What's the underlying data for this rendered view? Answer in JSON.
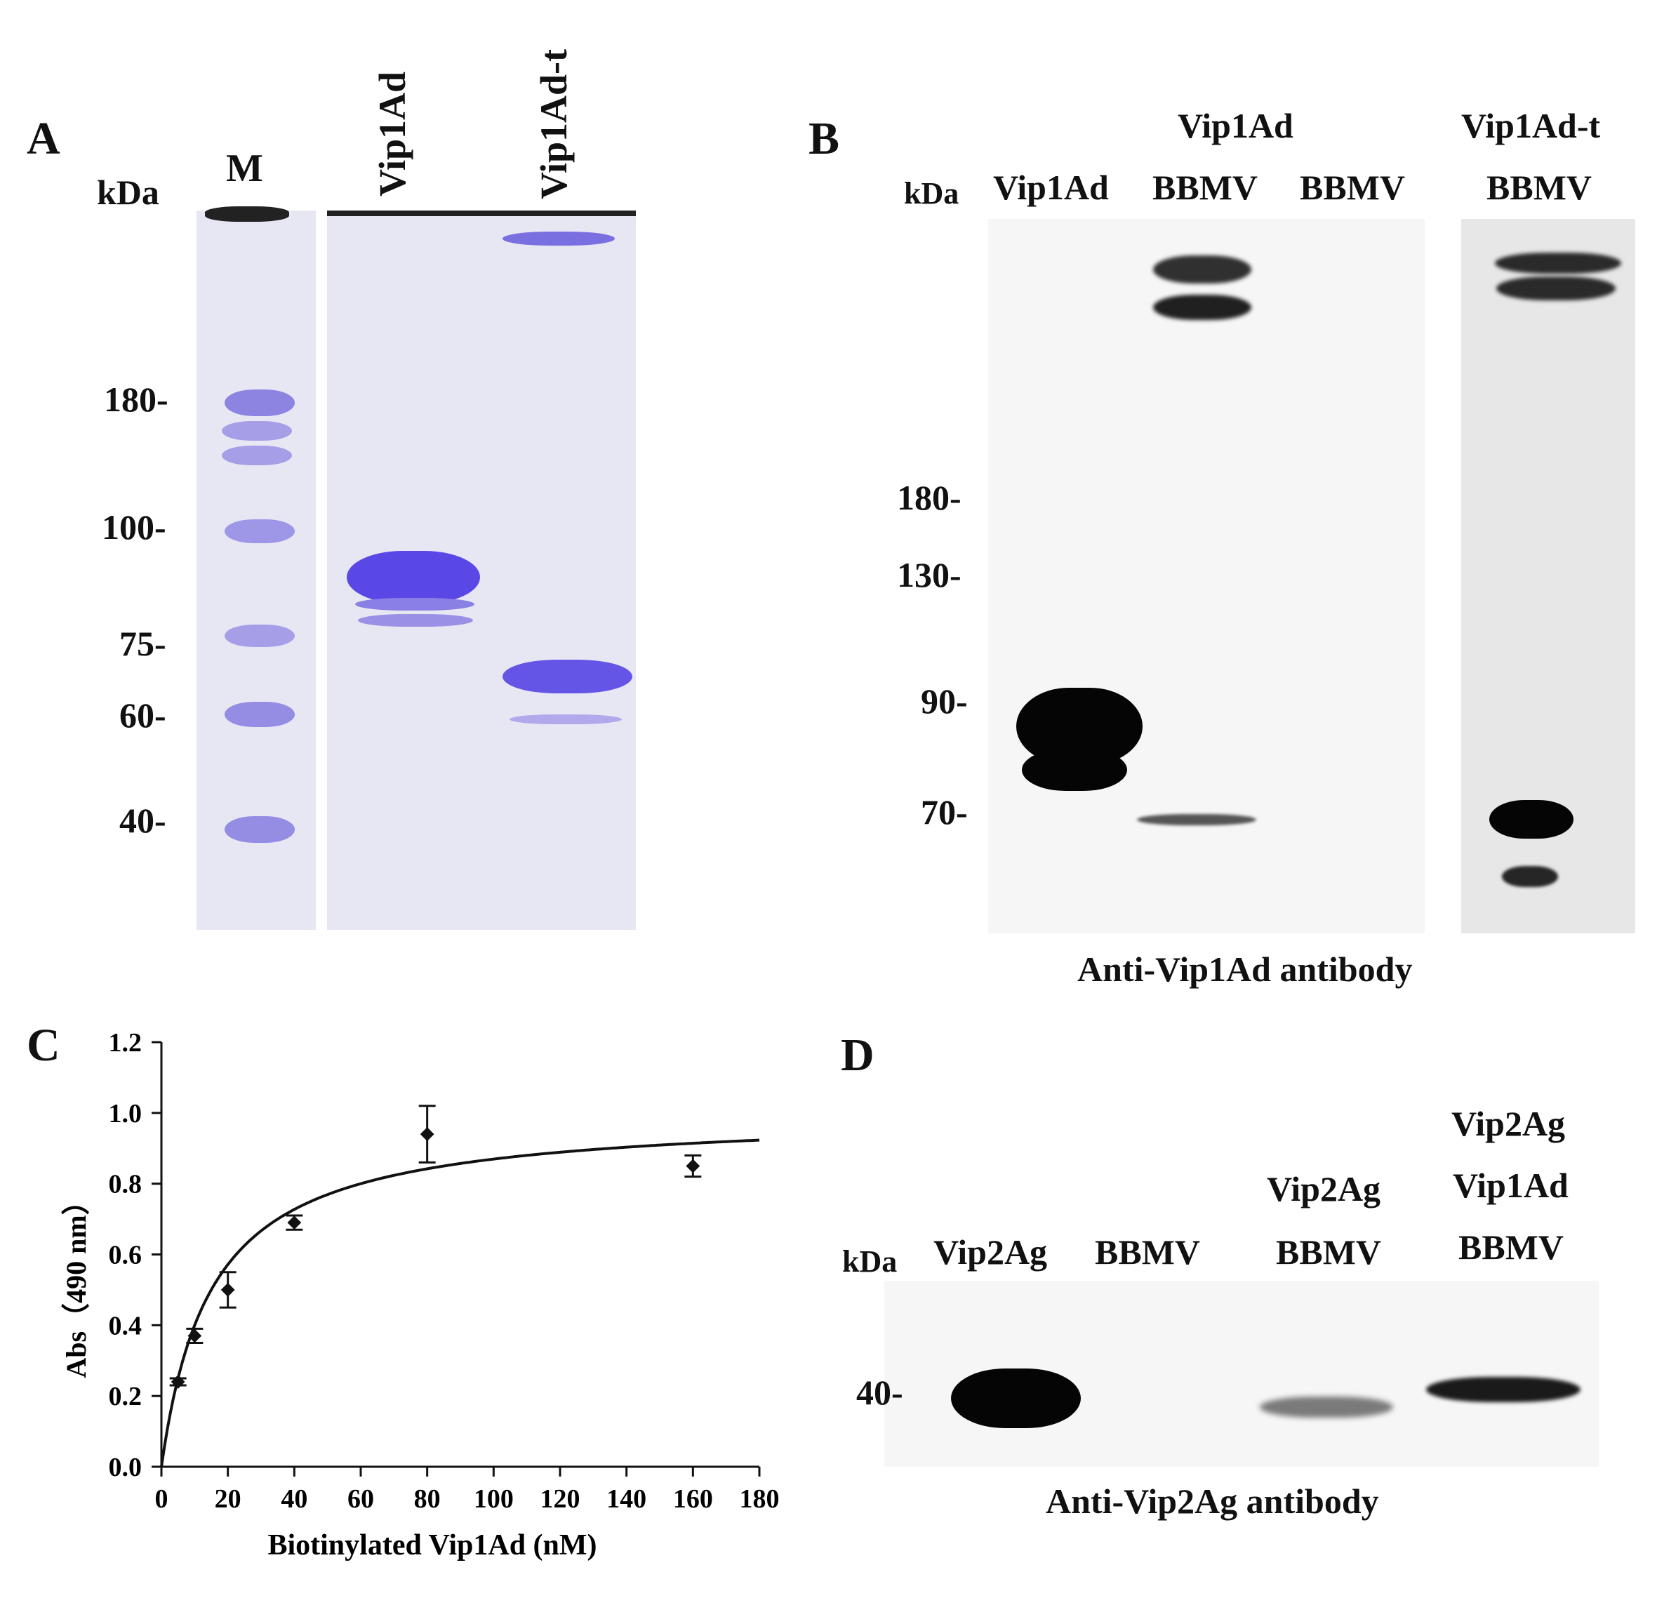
{
  "panelA": {
    "letter": "A",
    "unit": "kDa",
    "marker_lane": "M",
    "lanes": [
      "Vip1Ad",
      "Vip1Ad-t"
    ],
    "markers": [
      "180-",
      "100-",
      "75-",
      "60-",
      "40-"
    ]
  },
  "panelB": {
    "letter": "B",
    "unit": "kDa",
    "lane_headers": [
      {
        "top": "",
        "bottom": "Vip1Ad"
      },
      {
        "top": "Vip1Ad",
        "bottom": "BBMV"
      },
      {
        "top": "",
        "bottom": "BBMV"
      },
      {
        "top": "Vip1Ad-t",
        "bottom": "BBMV"
      }
    ],
    "markers": [
      "180-",
      "130-",
      "90-",
      "70-"
    ],
    "caption": "Anti-Vip1Ad antibody"
  },
  "panelC": {
    "letter": "C"
  },
  "panelD": {
    "letter": "D",
    "unit": "kDa",
    "lane_headers": [
      {
        "lines": [
          "Vip2Ag"
        ]
      },
      {
        "lines": [
          "BBMV"
        ]
      },
      {
        "lines": [
          "Vip2Ag",
          "BBMV"
        ]
      },
      {
        "lines": [
          "Vip2Ag",
          "Vip1Ad",
          "BBMV"
        ]
      }
    ],
    "marker": "40-",
    "caption": "Anti-Vip2Ag antibody"
  },
  "chart_data": {
    "type": "scatter",
    "xlabel": "Biotinylated Vip1Ad (nM)",
    "ylabel": "Abs（490 nm）",
    "xlim": [
      0,
      180
    ],
    "ylim": [
      0.0,
      1.2
    ],
    "xticks": [
      "0",
      "20",
      "40",
      "60",
      "80",
      "100",
      "120",
      "140",
      "160",
      "180"
    ],
    "yticks": [
      "0.0",
      "0.2",
      "0.4",
      "0.6",
      "0.8",
      "1.0",
      "1.2"
    ],
    "points": [
      {
        "x": 5,
        "y": 0.24,
        "err": 0.01
      },
      {
        "x": 10,
        "y": 0.37,
        "err": 0.02
      },
      {
        "x": 20,
        "y": 0.5,
        "err": 0.05
      },
      {
        "x": 40,
        "y": 0.69,
        "err": 0.02
      },
      {
        "x": 80,
        "y": 0.94,
        "err": 0.08
      },
      {
        "x": 160,
        "y": 0.85,
        "err": 0.03
      }
    ],
    "fit_curve": {
      "model": "one-site saturation",
      "Bmax": 1.0,
      "Kd": 15
    },
    "grid": false
  }
}
